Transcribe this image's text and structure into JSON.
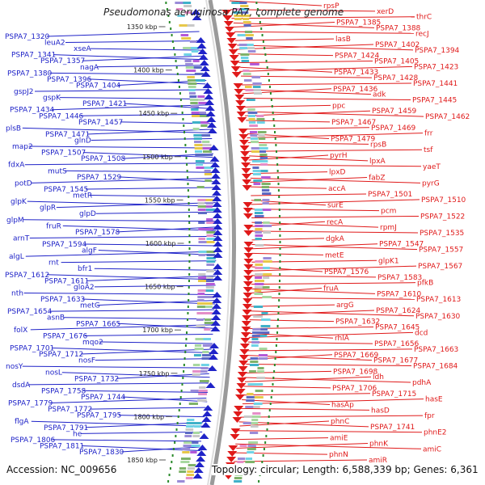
{
  "title": "Pseudomonas aeruginosa PA7, complete genome",
  "footer": {
    "accession": "Accession: NC_009656",
    "topology": "Topology: circular; Length: 6,588,339 bp; Genes: 6,361"
  },
  "colors": {
    "minus_strand": "#1f23c8",
    "plus_strand": "#e01a1a",
    "backbone": "#9a9a9a",
    "gc_dots": "#2a8a2a"
  },
  "kbp_ticks": [
    "1350 kbp",
    "1400 kbp",
    "1450 kbp",
    "1500 kbp",
    "1550 kbp",
    "1600 kbp",
    "1650 kbp",
    "1700 kbp",
    "1750 kbp",
    "1800 kbp",
    "1850 kbp"
  ],
  "left_labels": [
    "PSPA7_1320",
    "leuA2",
    "xseA",
    "PSPA7_1341",
    "PSPA7_1357",
    "nagA",
    "PSPA7_1380",
    "PSPA7_1396",
    "PSPA7_1404",
    "gspJ2",
    "gspK",
    "PSPA7_1421",
    "PSPA7_1434",
    "PSPA7_1446",
    "PSPA7_1457",
    "plsB",
    "PSPA7_1471",
    "glnD",
    "map2",
    "PSPA7_1507",
    "PSPA7_1508",
    "fdxA",
    "mutS",
    "PSPA7_1529",
    "potD",
    "PSPA7_1545",
    "metR",
    "glpK",
    "glpR",
    "glpD",
    "glpM",
    "fruR",
    "PSPA7_1578",
    "arnT",
    "PSPA7_1594",
    "algF",
    "algL",
    "rnt",
    "bfr1",
    "PSPA7_1612",
    "PSPA7_1611",
    "gloA2",
    "nth",
    "PSPA7_1633",
    "metG",
    "PSPA7_1654",
    "asnB",
    "PSPA7_1665",
    "folX",
    "PSPA7_1676",
    "mqo2",
    "PSPA7_1701",
    "PSPA7_1712",
    "nosF",
    "nosY",
    "nosL",
    "PSPA7_1732",
    "dsdA",
    "PSPA7_1758",
    "PSPA7_1744",
    "PSPA7_1779",
    "PSPA7_1772",
    "PSPA7_1795",
    "flgA",
    "PSPA7_1791",
    "he",
    "PSPA7_1806",
    "PSPA7_1811",
    "PSPA7_1830"
  ],
  "right_labels": [
    "rpsP",
    "xerD",
    "thrC",
    "PSPA7_1385",
    "PSPA7_1388",
    "recJ",
    "lasB",
    "PSPA7_1402",
    "PSPA7_1394",
    "PSPA7_1424",
    "PSPA7_1405",
    "PSPA7_1423",
    "PSPA7_1433",
    "PSPA7_1428",
    "PSPA7_1441",
    "PSPA7_1436",
    "adk",
    "PSPA7_1445",
    "ppc",
    "PSPA7_1459",
    "PSPA7_1462",
    "PSPA7_1467",
    "PSPA7_1469",
    "frr",
    "PSPA7_1479",
    "rpsB",
    "tsf",
    "pyrH",
    "lpxA",
    "yaeT",
    "lpxD",
    "fabZ",
    "pyrG",
    "accA",
    "PSPA7_1501",
    "PSPA7_1510",
    "surE",
    "pcm",
    "PSPA7_1522",
    "recA",
    "rpmJ",
    "PSPA7_1535",
    "dgkA",
    "PSPA7_1547",
    "PSPA7_1557",
    "metE",
    "glpK1",
    "PSPA7_1567",
    "PSPA7_1576",
    "PSPA7_1583",
    "pfkB",
    "fruA",
    "PSPA7_1610",
    "PSPA7_1613",
    "argG",
    "PSPA7_1624",
    "PSPA7_1630",
    "PSPA7_1632",
    "PSPA7_1645",
    "dcd",
    "rhlA",
    "PSPA7_1656",
    "PSPA7_1663",
    "PSPA7_1669",
    "PSPA7_1677",
    "PSPA7_1684",
    "PSPA7_1698",
    "ldh",
    "pdhA",
    "PSPA7_1706",
    "PSPA7_1715",
    "hasE",
    "hasAp",
    "hasD",
    "fpr",
    "phnC",
    "PSPA7_1741",
    "phnE2",
    "amiE",
    "phnK",
    "amiC",
    "phnN",
    "amiR"
  ]
}
